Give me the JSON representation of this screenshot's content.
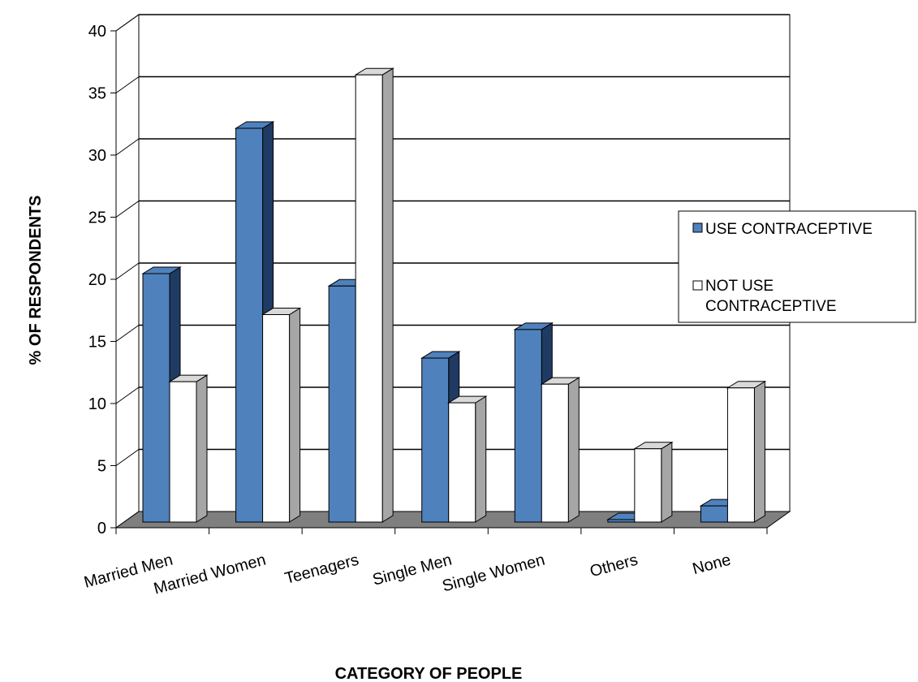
{
  "chart_data": {
    "type": "bar",
    "title": "",
    "xlabel": "CATEGORY OF PEOPLE",
    "ylabel": "% OF RESPONDENTS",
    "ylim": [
      0,
      40
    ],
    "yticks": [
      0,
      5,
      10,
      15,
      20,
      25,
      30,
      35,
      40
    ],
    "grid": true,
    "legend_position": "right",
    "categories": [
      "Married Men",
      "Married Women",
      "Teenagers",
      "Single Men",
      "Single Women",
      "Others",
      "None"
    ],
    "series": [
      {
        "name": "USE CONTRACEPTIVE",
        "color": "#4f81bd",
        "values": [
          20,
          31.7,
          19,
          13.2,
          15.5,
          0.2,
          1.3
        ]
      },
      {
        "name": "NOT USE CONTRACEPTIVE",
        "color": "#ffffff",
        "values": [
          11.3,
          16.7,
          36,
          9.6,
          11.1,
          5.9,
          10.8
        ]
      }
    ]
  }
}
